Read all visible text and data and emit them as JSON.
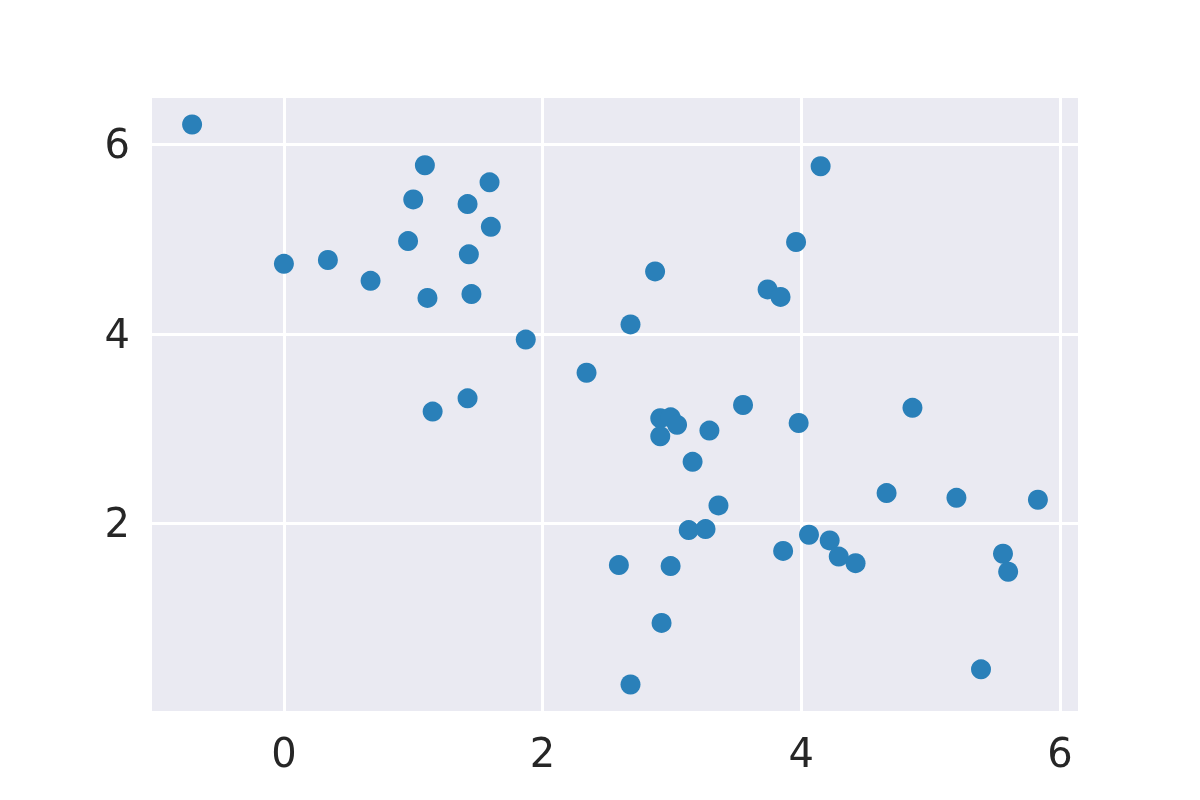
{
  "chart_data": {
    "type": "scatter",
    "color": "#2a80b9",
    "marker": "circle",
    "grid": true,
    "xlim": [
      -1.02,
      6.14
    ],
    "xticks": [
      0,
      2,
      4,
      6
    ],
    "ylim": [
      0.02,
      6.49
    ],
    "yticks": [
      2,
      4,
      6
    ],
    "x": [
      -0.71,
      0.0,
      0.34,
      0.67,
      0.96,
      1.0,
      1.09,
      1.11,
      1.15,
      1.42,
      1.42,
      1.43,
      1.45,
      1.59,
      1.6,
      1.87,
      2.34,
      2.59,
      2.68,
      2.68,
      2.87,
      2.91,
      2.91,
      2.92,
      2.99,
      2.99,
      3.04,
      3.13,
      3.16,
      3.26,
      3.29,
      3.36,
      3.55,
      3.74,
      3.84,
      3.86,
      3.96,
      3.98,
      4.06,
      4.15,
      4.22,
      4.29,
      4.42,
      4.66,
      4.86,
      5.2,
      5.39,
      5.56,
      5.6,
      5.83
    ],
    "values": [
      6.21,
      4.74,
      4.78,
      4.56,
      4.98,
      5.42,
      5.78,
      4.38,
      3.18,
      5.37,
      3.32,
      4.84,
      4.42,
      5.6,
      5.13,
      3.94,
      3.59,
      1.56,
      4.1,
      0.3,
      4.66,
      3.11,
      2.92,
      0.95,
      3.12,
      1.55,
      3.04,
      1.93,
      2.65,
      1.94,
      2.98,
      2.19,
      3.25,
      4.47,
      4.39,
      1.71,
      4.97,
      3.06,
      1.88,
      5.77,
      1.82,
      1.65,
      1.58,
      2.32,
      3.22,
      2.27,
      0.46,
      1.68,
      1.49,
      2.25
    ]
  }
}
